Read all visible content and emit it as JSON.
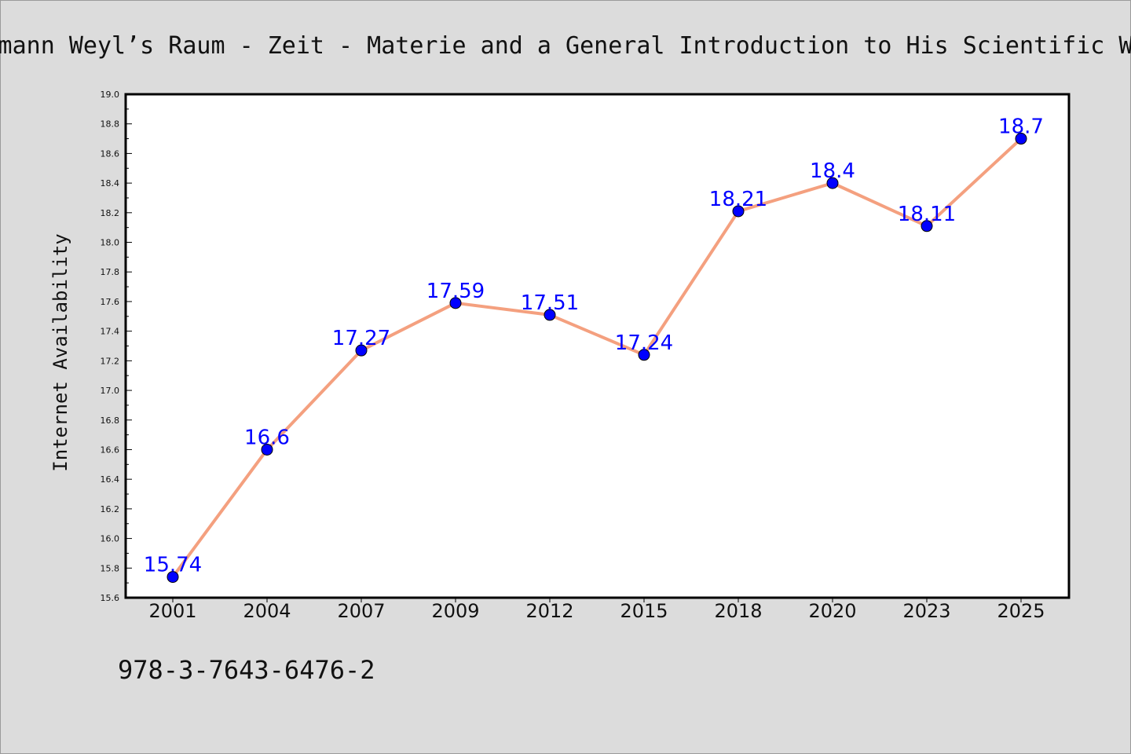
{
  "chart_data": {
    "type": "line",
    "title": "Hermann Weyl’s Raum - Zeit - Materie and a General Introduction to His Scientific Work",
    "ylabel": "Internet Availability",
    "xlabel": "",
    "categories": [
      "2001",
      "2004",
      "2007",
      "2009",
      "2012",
      "2015",
      "2018",
      "2020",
      "2023",
      "2025"
    ],
    "series": [
      {
        "values": [
          15.74,
          16.6,
          17.27,
          17.59,
          17.51,
          17.24,
          18.21,
          18.4,
          18.11,
          18.7
        ],
        "labels": [
          "15.74",
          "16.6",
          "17.27",
          "17.59",
          "17.51",
          "17.24",
          "18.21",
          "18.4",
          "18.11",
          "18.7"
        ]
      }
    ],
    "ylim": [
      15.6,
      19.0
    ],
    "yticks": [
      "15.6",
      "15.8",
      "16.0",
      "16.2",
      "16.4",
      "16.6",
      "16.8",
      "17.0",
      "17.2",
      "17.4",
      "17.6",
      "17.8",
      "18.0",
      "18.2",
      "18.4",
      "18.6",
      "18.8",
      "19.0"
    ],
    "grid": false,
    "legend": "none",
    "colors": {
      "line": "#f4a07f",
      "marker": "#0000ff",
      "marker_edge": "#000000",
      "data_label": "#0000ff",
      "background": "#dcdcdc",
      "plot_background": "#ffffff",
      "axis": "#000000"
    }
  },
  "footer": {
    "isbn": "978-3-7643-6476-2"
  }
}
